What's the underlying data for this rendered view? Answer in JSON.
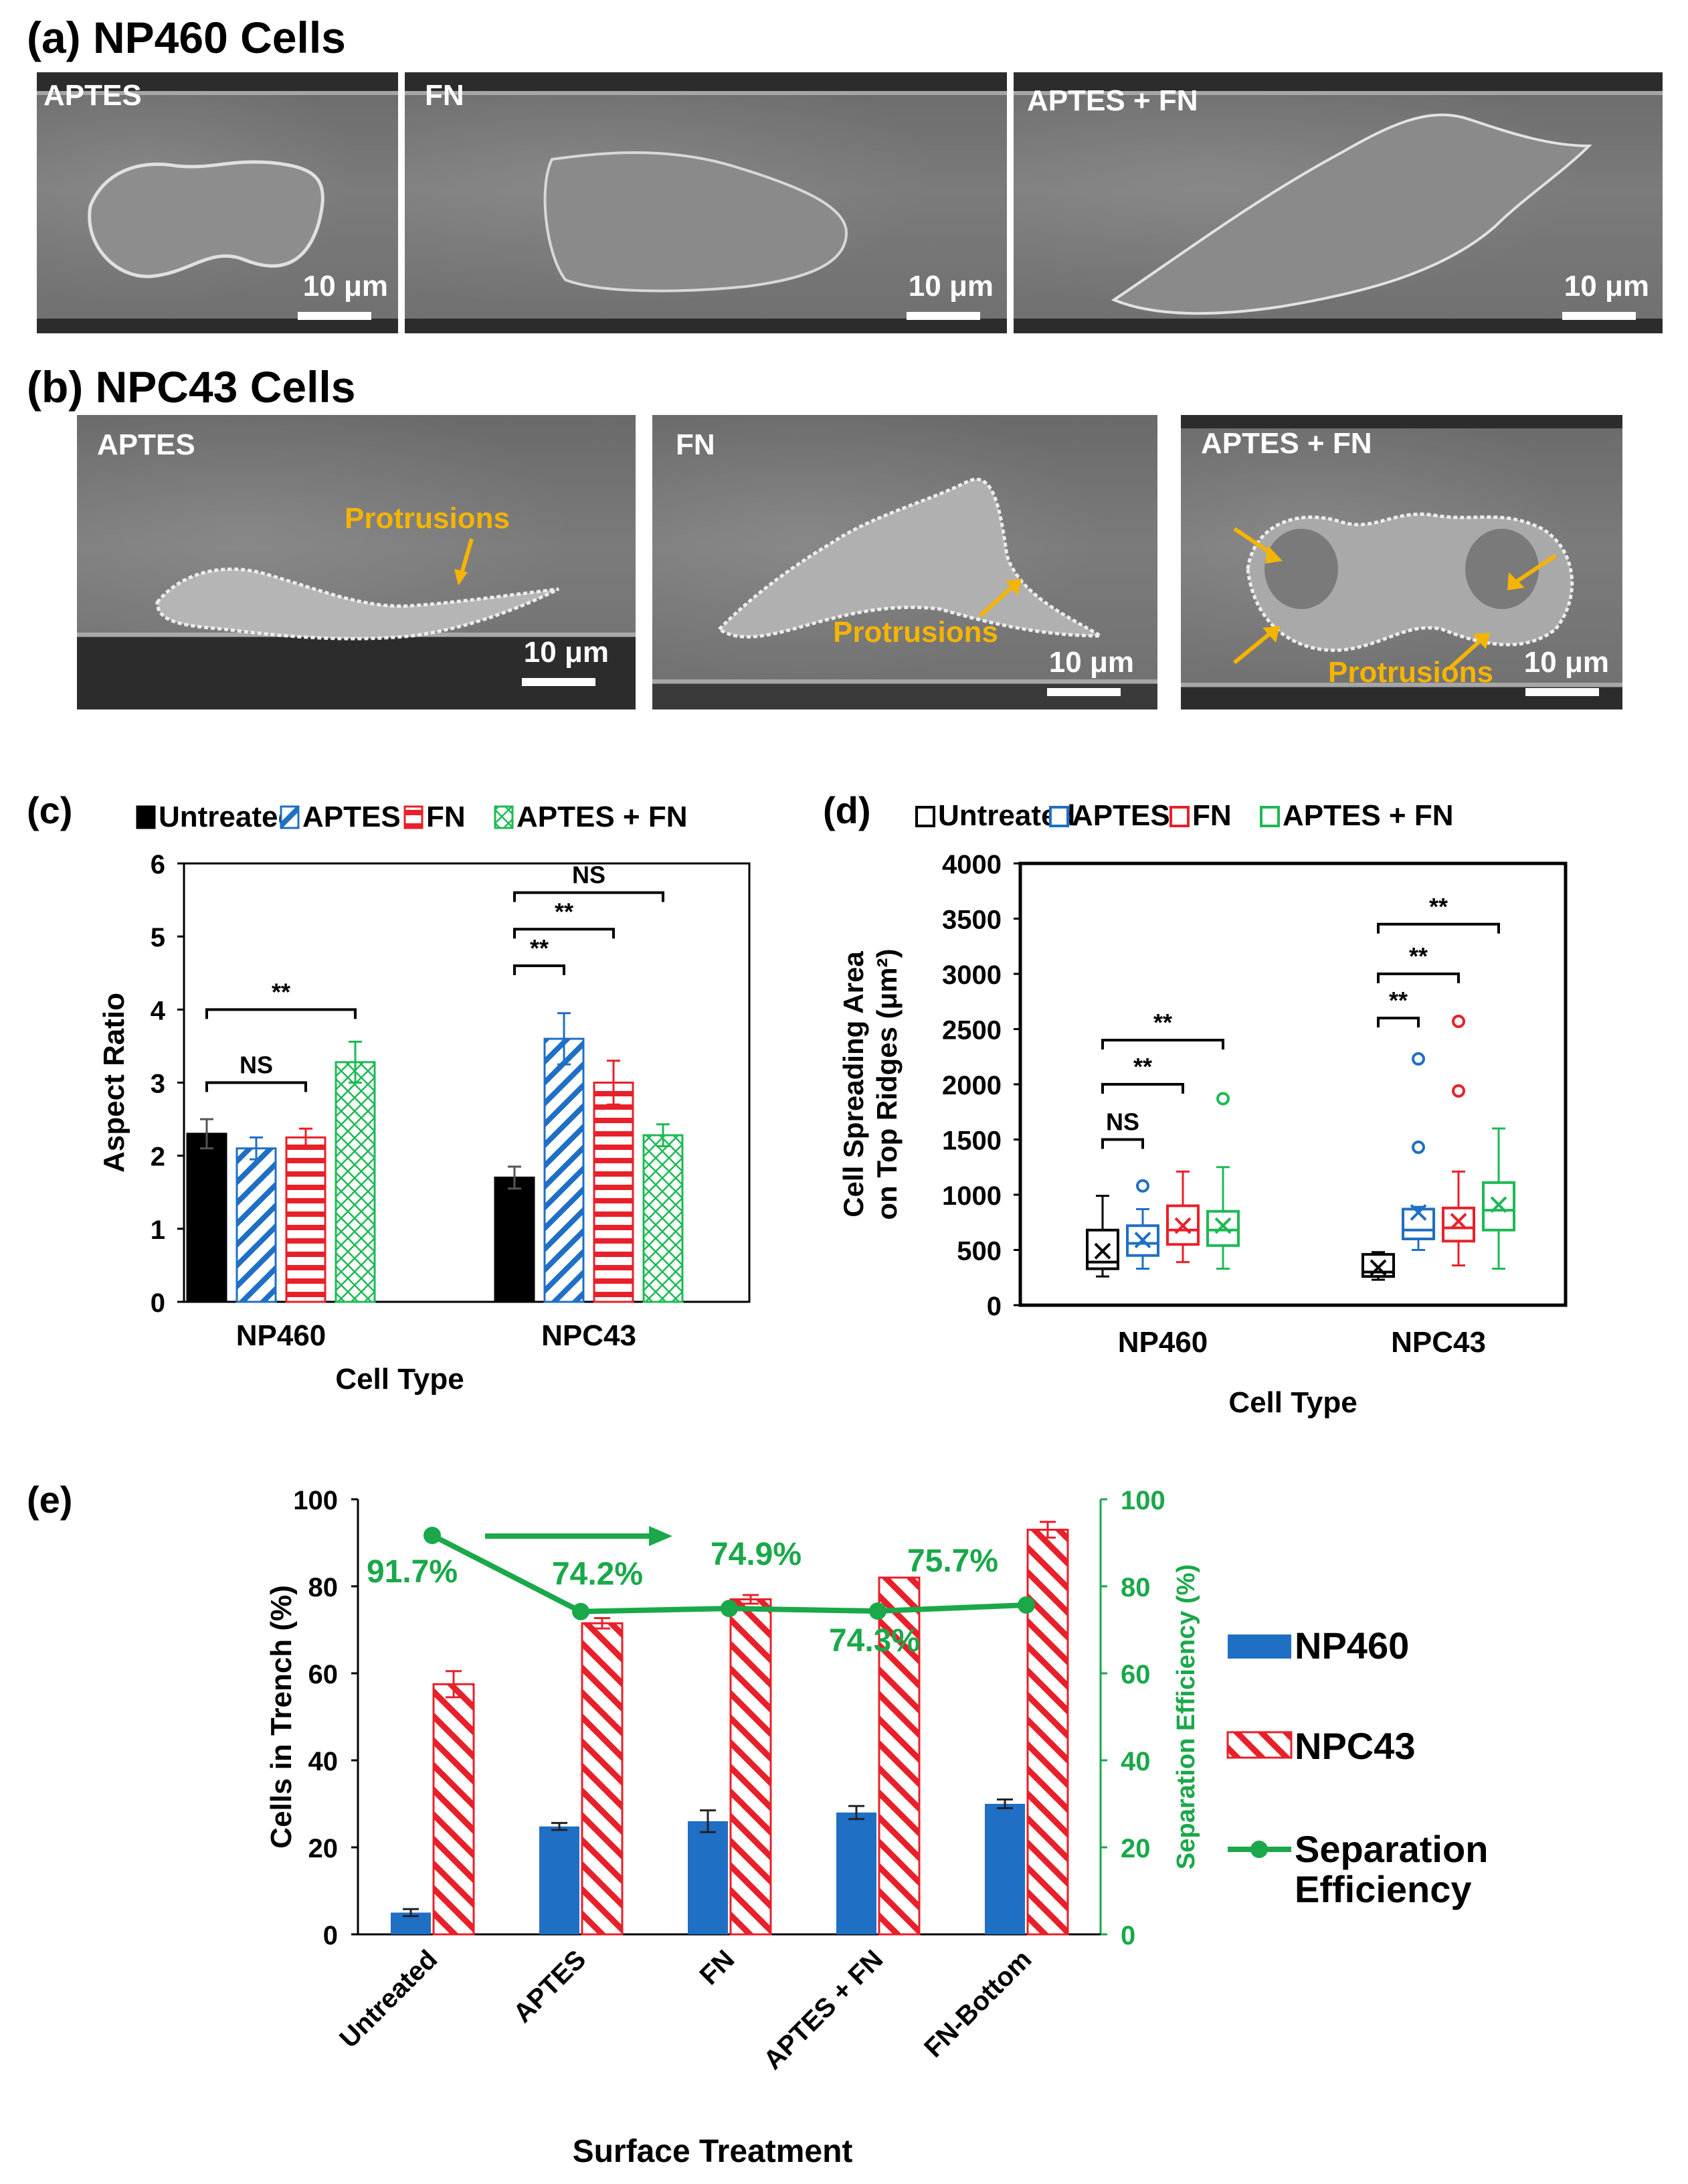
{
  "panel_a": {
    "label": "(a) NP460 Cells",
    "images": [
      {
        "label": "APTES",
        "scale": "10 μm"
      },
      {
        "label": "FN",
        "scale": "10 μm"
      },
      {
        "label": "APTES + FN",
        "scale": "10 μm"
      }
    ]
  },
  "panel_b": {
    "label": "(b) NPC43 Cells",
    "images": [
      {
        "label": "APTES",
        "scale": "10 μm",
        "annotation": "Protrusions"
      },
      {
        "label": "FN",
        "scale": "10 μm",
        "annotation": "Protrusions"
      },
      {
        "label": "APTES + FN",
        "scale": "10 μm",
        "annotation": "Protrusions"
      }
    ]
  },
  "colors": {
    "untreated": "#000000",
    "aptes": "#1f6fc5",
    "fn": "#e8202a",
    "aptes_fn": "#1db954",
    "np460": "#1f6fc5",
    "npc43": "#e8202a",
    "efficiency": "#1aa84a",
    "protrusion": "#f5b400"
  },
  "chart_data": [
    {
      "id": "c",
      "panel_label": "(c)",
      "type": "bar",
      "title": "",
      "xlabel": "Cell Type",
      "ylabel": "Aspect Ratio",
      "ylim": [
        0,
        6
      ],
      "yticks": [
        0,
        1,
        2,
        3,
        4,
        5,
        6
      ],
      "categories": [
        "NP460",
        "NPC43"
      ],
      "legend": [
        "Untreated",
        "APTES",
        "FN",
        "APTES + FN"
      ],
      "series": [
        {
          "name": "Untreated",
          "values": [
            2.3,
            1.7
          ],
          "errors": [
            0.2,
            0.15
          ]
        },
        {
          "name": "APTES",
          "values": [
            2.1,
            3.6
          ],
          "errors": [
            0.15,
            0.35
          ]
        },
        {
          "name": "FN",
          "values": [
            2.25,
            3.0
          ],
          "errors": [
            0.12,
            0.3
          ]
        },
        {
          "name": "APTES + FN",
          "values": [
            3.28,
            2.28
          ],
          "errors": [
            0.28,
            0.15
          ]
        }
      ],
      "annotations": [
        {
          "text": "NS",
          "category": 0,
          "from": 0,
          "to": 2,
          "level": 3.0
        },
        {
          "text": "**",
          "category": 0,
          "from": 0,
          "to": 3,
          "level": 4.0
        },
        {
          "text": "**",
          "category": 1,
          "from": 0,
          "to": 1,
          "level": 4.6
        },
        {
          "text": "**",
          "category": 1,
          "from": 0,
          "to": 2,
          "level": 5.1
        },
        {
          "text": "NS",
          "category": 1,
          "from": 0,
          "to": 3,
          "level": 5.6
        }
      ]
    },
    {
      "id": "d",
      "panel_label": "(d)",
      "type": "box",
      "title": "",
      "xlabel": "Cell Type",
      "ylabel_line1": "Cell Spreading Area",
      "ylabel_line2": "on Top Ridges (μm²)",
      "ylim": [
        0,
        4000
      ],
      "yticks": [
        0,
        500,
        1000,
        1500,
        2000,
        2500,
        3000,
        3500,
        4000
      ],
      "categories": [
        "NP460",
        "NPC43"
      ],
      "legend": [
        "Untreated",
        "APTES",
        "FN",
        "APTES + FN"
      ],
      "series": [
        {
          "name": "Untreated",
          "boxes": [
            {
              "min": 260,
              "q1": 330,
              "median": 390,
              "q3": 680,
              "max": 990,
              "mean": 490,
              "outliers": []
            },
            {
              "min": 230,
              "q1": 260,
              "median": 300,
              "q3": 460,
              "max": 480,
              "mean": 340,
              "outliers": []
            }
          ]
        },
        {
          "name": "APTES",
          "boxes": [
            {
              "min": 330,
              "q1": 450,
              "median": 560,
              "q3": 720,
              "max": 870,
              "mean": 590,
              "outliers": [
                1080
              ]
            },
            {
              "min": 500,
              "q1": 600,
              "median": 680,
              "q3": 870,
              "max": 890,
              "mean": 840,
              "outliers": [
                1430,
                2230
              ]
            }
          ]
        },
        {
          "name": "FN",
          "boxes": [
            {
              "min": 390,
              "q1": 550,
              "median": 680,
              "q3": 900,
              "max": 1210,
              "mean": 720,
              "outliers": []
            },
            {
              "min": 360,
              "q1": 580,
              "median": 700,
              "q3": 880,
              "max": 1210,
              "mean": 760,
              "outliers": [
                1940,
                2570
              ]
            }
          ]
        },
        {
          "name": "APTES + FN",
          "boxes": [
            {
              "min": 330,
              "q1": 540,
              "median": 680,
              "q3": 850,
              "max": 1250,
              "mean": 720,
              "outliers": [
                1870
              ]
            },
            {
              "min": 330,
              "q1": 680,
              "median": 860,
              "q3": 1110,
              "max": 1600,
              "mean": 910,
              "outliers": []
            }
          ]
        }
      ],
      "annotations": [
        {
          "text": "NS",
          "category": 0,
          "from": 0,
          "to": 1,
          "level": 1500
        },
        {
          "text": "**",
          "category": 0,
          "from": 0,
          "to": 2,
          "level": 2000
        },
        {
          "text": "**",
          "category": 0,
          "from": 0,
          "to": 3,
          "level": 2400
        },
        {
          "text": "**",
          "category": 1,
          "from": 0,
          "to": 1,
          "level": 2600
        },
        {
          "text": "**",
          "category": 1,
          "from": 0,
          "to": 2,
          "level": 3000
        },
        {
          "text": "**",
          "category": 1,
          "from": 0,
          "to": 3,
          "level": 3450
        }
      ]
    },
    {
      "id": "e",
      "panel_label": "(e)",
      "type": "bar+line",
      "title": "",
      "xlabel": "Surface Treatment",
      "ylabel": "Cells in Trench (%)",
      "y2label": "Separation Efficiency (%)",
      "ylim": [
        0,
        100
      ],
      "y2lim": [
        0,
        100
      ],
      "yticks": [
        0,
        20,
        40,
        60,
        80,
        100
      ],
      "categories": [
        "Untreated",
        "APTES",
        "FN",
        "APTES + FN",
        "FN-Bottom"
      ],
      "series": [
        {
          "name": "NP460",
          "values": [
            5,
            24.8,
            26,
            28,
            30
          ],
          "errors": [
            0.8,
            0.8,
            2.5,
            1.5,
            1.0
          ]
        },
        {
          "name": "NPC43",
          "values": [
            57.5,
            71.5,
            77,
            82,
            93
          ],
          "errors": [
            3.0,
            1.2,
            1.0,
            0,
            1.8
          ]
        },
        {
          "name": "Separation Efficiency",
          "axis": "right",
          "values": [
            91.7,
            74.2,
            74.9,
            74.3,
            75.7
          ]
        }
      ],
      "point_labels": [
        "91.7%",
        "74.2%",
        "74.9%",
        "74.3%",
        "75.7%"
      ],
      "legend": [
        "NP460",
        "NPC43",
        "Separation Efficiency"
      ]
    }
  ]
}
